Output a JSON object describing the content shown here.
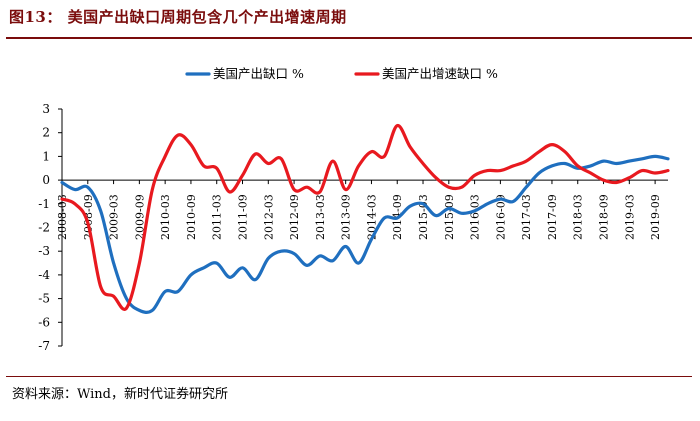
{
  "figure": {
    "title": "图13：  美国产出缺口周期包含几个产出增速周期",
    "source": "资料来源：Wind，新时代证券研究所"
  },
  "colors": {
    "series_blue": "#1f6fbf",
    "series_red": "#e8191f",
    "accent": "#7a0c0c"
  },
  "chart_data": {
    "type": "line",
    "title": "",
    "xlabel": "",
    "ylabel": "",
    "ylim": [
      -7,
      3
    ],
    "yticks": [
      -7,
      -6,
      -5,
      -4,
      -3,
      -2,
      -1,
      0,
      1,
      2,
      3
    ],
    "xlim": [
      0,
      47
    ],
    "x_tick_labels": [
      "2008-03",
      "2008-09",
      "2009-03",
      "2009-09",
      "2010-03",
      "2010-09",
      "2011-03",
      "2011-09",
      "2012-03",
      "2012-09",
      "2013-03",
      "2013-09",
      "2014-03",
      "2014-09",
      "2015-03",
      "2015-09",
      "2016-03",
      "2016-09",
      "2017-03",
      "2017-09",
      "2018-03",
      "2018-09",
      "2019-03",
      "2019-09"
    ],
    "x_note": "x values are quarter indices; 0 = 2008Q1, 47 = 2019Q4",
    "series": [
      {
        "name": "美国产出缺口  %",
        "color": "#1f6fbf",
        "x": [
          0,
          1,
          2,
          3,
          4,
          5,
          6,
          7,
          8,
          9,
          10,
          11,
          12,
          13,
          14,
          15,
          16,
          17,
          18,
          19,
          20,
          21,
          22,
          23,
          24,
          25,
          26,
          27,
          28,
          29,
          30,
          31,
          32,
          33,
          34,
          35,
          36,
          37,
          38,
          39,
          40,
          41,
          42,
          43,
          44,
          45,
          46,
          47
        ],
        "values": [
          -0.1,
          -0.4,
          -0.3,
          -1.3,
          -3.5,
          -5.0,
          -5.5,
          -5.5,
          -4.7,
          -4.7,
          -4.0,
          -3.7,
          -3.5,
          -4.1,
          -3.7,
          -4.2,
          -3.3,
          -3.0,
          -3.1,
          -3.6,
          -3.2,
          -3.4,
          -2.8,
          -3.5,
          -2.5,
          -1.6,
          -1.6,
          -1.1,
          -1.0,
          -1.5,
          -1.2,
          -1.4,
          -1.3,
          -1.0,
          -0.8,
          -0.9,
          -0.3,
          0.3,
          0.6,
          0.7,
          0.5,
          0.6,
          0.8,
          0.7,
          0.8,
          0.9,
          1.0,
          0.9
        ]
      },
      {
        "name": "美国产出增速缺口  %",
        "color": "#e8191f",
        "x": [
          0,
          1,
          2,
          3,
          4,
          5,
          6,
          7,
          8,
          9,
          10,
          11,
          12,
          13,
          14,
          15,
          16,
          17,
          18,
          19,
          20,
          21,
          22,
          23,
          24,
          25,
          26,
          27,
          28,
          29,
          30,
          31,
          32,
          33,
          34,
          35,
          36,
          37,
          38,
          39,
          40,
          41,
          42,
          43,
          44,
          45,
          46,
          47
        ],
        "values": [
          -0.8,
          -1.0,
          -1.8,
          -4.5,
          -4.9,
          -5.4,
          -3.5,
          -0.4,
          1.0,
          1.9,
          1.5,
          0.6,
          0.5,
          -0.5,
          0.2,
          1.1,
          0.7,
          0.9,
          -0.4,
          -0.3,
          -0.5,
          0.8,
          -0.4,
          0.6,
          1.2,
          1.0,
          2.3,
          1.4,
          0.7,
          0.1,
          -0.3,
          -0.3,
          0.2,
          0.4,
          0.4,
          0.6,
          0.8,
          1.2,
          1.5,
          1.2,
          0.6,
          0.3,
          0.0,
          -0.1,
          0.1,
          0.4,
          0.3,
          0.4
        ]
      }
    ],
    "legend_position": "top"
  }
}
